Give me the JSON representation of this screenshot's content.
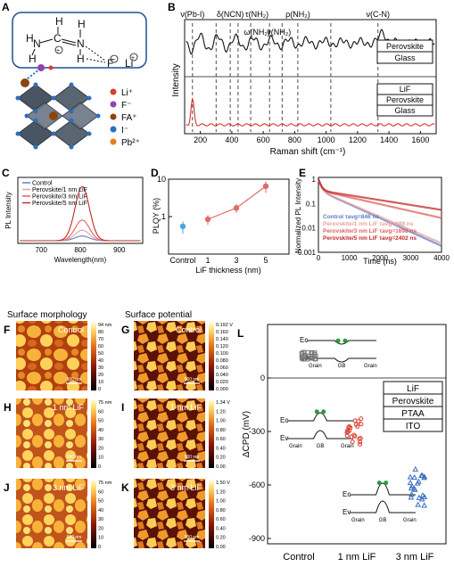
{
  "panels": {
    "A": {
      "letter": "A",
      "molecule_label": "NH2-CH=NH2+ ... F- Li+",
      "legend": [
        {
          "label": "Li⁺",
          "color": "#d93d2c"
        },
        {
          "label": "F⁻",
          "color": "#8e44ad"
        },
        {
          "label": "FA⁺",
          "color": "#8b4513"
        },
        {
          "label": "I⁻",
          "color": "#2c6fbf"
        },
        {
          "label": "Pb²⁺",
          "color": "#e67e22"
        }
      ]
    },
    "B": {
      "letter": "B",
      "xlabel": "Raman shift (cm⁻¹)",
      "ylabel": "Intensity",
      "xticks": [
        "200",
        "400",
        "600",
        "800",
        "1000",
        "1200",
        "1400",
        "1600"
      ],
      "peak_labels": [
        "ν(Pb-I)",
        "δ(NCN)",
        "τ(NH₂)",
        "ρ(NH₂)",
        "ν(C-N)",
        "ω(NH₂)",
        "ν(NH₂)"
      ],
      "top_legend": [
        "Perovskite",
        "Glass"
      ],
      "bottom_legend": [
        "LiF",
        "Perovskite",
        "Glass"
      ]
    },
    "C": {
      "letter": "C",
      "xlabel": "Wavelength(nm)",
      "ylabel": "PL Intensity",
      "xticks": [
        "700",
        "800",
        "900"
      ],
      "legend": [
        {
          "label": "Control",
          "color": "#5b7fc4"
        },
        {
          "label": "Perovskite/1 nm LiF",
          "color": "#e9a0a0"
        },
        {
          "label": "Perovskite/3 nm LiF",
          "color": "#e06060"
        },
        {
          "label": "Perovskite/5 nm LiF",
          "color": "#c0282a"
        }
      ]
    },
    "D": {
      "letter": "D",
      "xlabel": "LiF thickness (nm)",
      "ylabel": "PLQY (%)",
      "xticks": [
        "Control",
        "1",
        "3",
        "5"
      ],
      "yticks": [
        "1",
        "10"
      ]
    },
    "E": {
      "letter": "E",
      "xlabel": "Time (ns)",
      "ylabel": "Normalized PL Intensity",
      "xticks": [
        "0",
        "1000",
        "2000",
        "3000",
        "4000"
      ],
      "yticks": [
        "1",
        "0.1",
        "0.01",
        "0.001"
      ],
      "legend": [
        {
          "label": "Control τavg=846 ns",
          "color": "#5b7fc4"
        },
        {
          "label": "Perovskite/1 nm LiF τavg=889 ns",
          "color": "#e9a0a0"
        },
        {
          "label": "Perovskite/3 nm LiF τavg=1698 ns",
          "color": "#e06060"
        },
        {
          "label": "Perovskite/5 nm LiF τavg=2402 ns",
          "color": "#c0282a"
        }
      ]
    },
    "F": {
      "letter": "F",
      "heading": "Surface morphology",
      "label": "Control",
      "scale": "500 nm",
      "bar_max": "94 nm",
      "bar_ticks": [
        "80",
        "70",
        "60",
        "50",
        "40",
        "30",
        "20",
        "10",
        "0"
      ]
    },
    "G": {
      "letter": "G",
      "heading": "Surface potential",
      "label": "Control",
      "scale": "500 nm",
      "bar_max": "0.192 V",
      "bar_ticks": [
        "0.160",
        "0.140",
        "0.120",
        "0.100",
        "0.080",
        "0.060",
        "0.040",
        "0.020",
        "0.000"
      ]
    },
    "H": {
      "letter": "H",
      "label": "1 nm LiF",
      "scale": "500 nm",
      "bar_max": "75 nm",
      "bar_ticks": [
        "60",
        "50",
        "40",
        "30",
        "20",
        "10",
        "0"
      ]
    },
    "I": {
      "letter": "I",
      "label": "1 nm LiF",
      "scale": "500 nm",
      "bar_max": "1.34 V",
      "bar_ticks": [
        "1.20",
        "1.00",
        "0.80",
        "0.60",
        "0.40",
        "0.20",
        "0.00"
      ]
    },
    "J": {
      "letter": "J",
      "label": "3 nm LiF",
      "scale": "500 nm",
      "bar_max": "75 nm",
      "bar_ticks": [
        "60",
        "50",
        "40",
        "30",
        "20",
        "10",
        "0"
      ]
    },
    "K": {
      "letter": "K",
      "label": "3 nm LiF",
      "scale": "500 nm",
      "bar_max": "1.50 V",
      "bar_ticks": [
        "1.20",
        "1.00",
        "0.80",
        "0.60",
        "0.40",
        "0.20",
        "0.00"
      ]
    },
    "L": {
      "letter": "L",
      "ylabel": "ΔCPD (mV)",
      "yticks": [
        "0",
        "-300",
        "-600",
        "-900"
      ],
      "xticks": [
        "Control",
        "1 nm LiF",
        "3 nm LiF"
      ],
      "stack": [
        "LiF",
        "Perovskite",
        "PTAA",
        "ITO"
      ],
      "band_labels": {
        "ec": "Ec",
        "ev": "Ev",
        "grain": "Grain",
        "gb": "GB"
      }
    }
  }
}
